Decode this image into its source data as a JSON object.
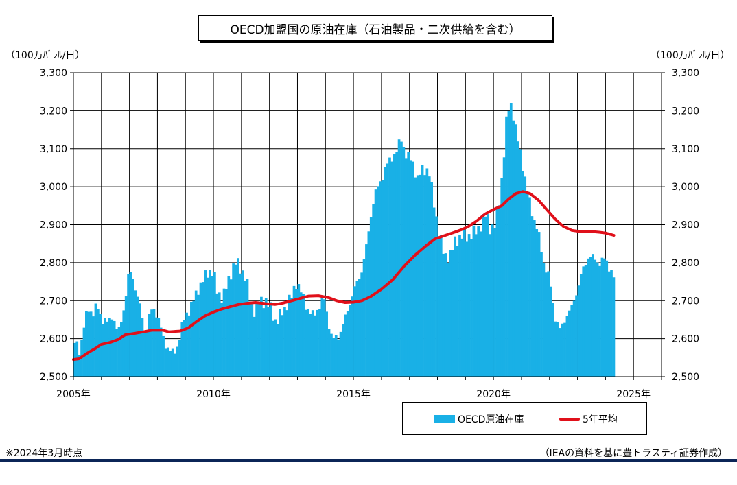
{
  "chart_data": {
    "type": "bar",
    "title": "OECD加盟国の原油在庫（石油製品・二次供給を含む）",
    "unit_left": "（100万ﾊﾞﾚﾙ/日）",
    "unit_right": "（100万ﾊﾞﾚﾙ/日）",
    "ylim": [
      2500,
      3300
    ],
    "yticks": [
      "2,500",
      "2,600",
      "2,700",
      "2,800",
      "2,900",
      "3,000",
      "3,100",
      "3,200",
      "3,300"
    ],
    "ytick_values": [
      2500,
      2600,
      2700,
      2800,
      2900,
      3000,
      3100,
      3200,
      3300
    ],
    "xlim": [
      2005.0,
      2026.0
    ],
    "xticks": [
      "2005年",
      "2010年",
      "2015年",
      "2020年",
      "2025年"
    ],
    "xtick_values": [
      2005,
      2010,
      2015,
      2020,
      2025
    ],
    "grid": true,
    "legend_position": "bottom-right",
    "series": [
      {
        "name": "OECD原油在庫",
        "kind": "bar",
        "color": "#19b0e6",
        "anchors": [
          [
            2005.0,
            2590
          ],
          [
            2005.2,
            2570
          ],
          [
            2005.35,
            2640
          ],
          [
            2005.5,
            2680
          ],
          [
            2005.65,
            2665
          ],
          [
            2005.8,
            2685
          ],
          [
            2006.0,
            2650
          ],
          [
            2006.2,
            2640
          ],
          [
            2006.35,
            2665
          ],
          [
            2006.55,
            2610
          ],
          [
            2006.7,
            2660
          ],
          [
            2006.85,
            2720
          ],
          [
            2006.95,
            2780
          ],
          [
            2007.1,
            2760
          ],
          [
            2007.2,
            2720
          ],
          [
            2007.35,
            2680
          ],
          [
            2007.55,
            2610
          ],
          [
            2007.7,
            2670
          ],
          [
            2007.85,
            2680
          ],
          [
            2008.0,
            2650
          ],
          [
            2008.2,
            2590
          ],
          [
            2008.35,
            2575
          ],
          [
            2008.5,
            2560
          ],
          [
            2008.65,
            2575
          ],
          [
            2008.8,
            2620
          ],
          [
            2008.95,
            2660
          ],
          [
            2009.2,
            2690
          ],
          [
            2009.4,
            2730
          ],
          [
            2009.6,
            2755
          ],
          [
            2009.8,
            2780
          ],
          [
            2009.95,
            2775
          ],
          [
            2010.1,
            2720
          ],
          [
            2010.3,
            2710
          ],
          [
            2010.45,
            2740
          ],
          [
            2010.6,
            2780
          ],
          [
            2010.75,
            2800
          ],
          [
            2010.9,
            2790
          ],
          [
            2011.1,
            2760
          ],
          [
            2011.3,
            2690
          ],
          [
            2011.45,
            2670
          ],
          [
            2011.6,
            2700
          ],
          [
            2011.8,
            2700
          ],
          [
            2012.0,
            2680
          ],
          [
            2012.2,
            2640
          ],
          [
            2012.4,
            2670
          ],
          [
            2012.55,
            2685
          ],
          [
            2012.75,
            2710
          ],
          [
            2012.9,
            2750
          ],
          [
            2013.1,
            2720
          ],
          [
            2013.3,
            2680
          ],
          [
            2013.5,
            2660
          ],
          [
            2013.7,
            2680
          ],
          [
            2013.9,
            2710
          ],
          [
            2014.05,
            2650
          ],
          [
            2014.2,
            2595
          ],
          [
            2014.45,
            2610
          ],
          [
            2014.65,
            2650
          ],
          [
            2014.85,
            2700
          ],
          [
            2015.05,
            2740
          ],
          [
            2015.25,
            2780
          ],
          [
            2015.4,
            2830
          ],
          [
            2015.55,
            2910
          ],
          [
            2015.7,
            2975
          ],
          [
            2015.9,
            3010
          ],
          [
            2016.1,
            3050
          ],
          [
            2016.35,
            3080
          ],
          [
            2016.55,
            3100
          ],
          [
            2016.65,
            3130
          ],
          [
            2016.85,
            3080
          ],
          [
            2017.05,
            3070
          ],
          [
            2017.25,
            3020
          ],
          [
            2017.45,
            3050
          ],
          [
            2017.65,
            3040
          ],
          [
            2017.85,
            2950
          ],
          [
            2018.0,
            2880
          ],
          [
            2018.2,
            2820
          ],
          [
            2018.4,
            2815
          ],
          [
            2018.6,
            2860
          ],
          [
            2018.85,
            2870
          ],
          [
            2019.05,
            2870
          ],
          [
            2019.3,
            2880
          ],
          [
            2019.5,
            2900
          ],
          [
            2019.7,
            2930
          ],
          [
            2019.85,
            2890
          ],
          [
            2020.0,
            2895
          ],
          [
            2020.2,
            2980
          ],
          [
            2020.35,
            3100
          ],
          [
            2020.45,
            3200
          ],
          [
            2020.6,
            3220
          ],
          [
            2020.75,
            3150
          ],
          [
            2020.95,
            3080
          ],
          [
            2021.15,
            2990
          ],
          [
            2021.35,
            2930
          ],
          [
            2021.55,
            2880
          ],
          [
            2021.75,
            2800
          ],
          [
            2021.95,
            2760
          ],
          [
            2022.15,
            2660
          ],
          [
            2022.35,
            2620
          ],
          [
            2022.55,
            2660
          ],
          [
            2022.75,
            2680
          ],
          [
            2022.95,
            2730
          ],
          [
            2023.15,
            2780
          ],
          [
            2023.35,
            2820
          ],
          [
            2023.55,
            2810
          ],
          [
            2023.75,
            2800
          ],
          [
            2023.95,
            2810
          ],
          [
            2024.15,
            2780
          ],
          [
            2024.25,
            2760
          ]
        ]
      },
      {
        "name": "5年平均",
        "kind": "line",
        "color": "#e0101a",
        "points": [
          [
            2005.0,
            2545
          ],
          [
            2005.2,
            2547
          ],
          [
            2005.5,
            2562
          ],
          [
            2005.8,
            2575
          ],
          [
            2006.0,
            2585
          ],
          [
            2006.3,
            2590
          ],
          [
            2006.6,
            2598
          ],
          [
            2006.85,
            2610
          ],
          [
            2007.2,
            2614
          ],
          [
            2007.5,
            2618
          ],
          [
            2007.8,
            2622
          ],
          [
            2008.2,
            2622
          ],
          [
            2008.4,
            2618
          ],
          [
            2008.8,
            2620
          ],
          [
            2009.1,
            2628
          ],
          [
            2009.4,
            2645
          ],
          [
            2009.7,
            2660
          ],
          [
            2010.0,
            2670
          ],
          [
            2010.3,
            2678
          ],
          [
            2010.6,
            2684
          ],
          [
            2010.9,
            2690
          ],
          [
            2011.2,
            2693
          ],
          [
            2011.5,
            2695
          ],
          [
            2011.9,
            2692
          ],
          [
            2012.2,
            2690
          ],
          [
            2012.5,
            2694
          ],
          [
            2012.8,
            2700
          ],
          [
            2013.1,
            2706
          ],
          [
            2013.4,
            2712
          ],
          [
            2013.75,
            2713
          ],
          [
            2014.1,
            2708
          ],
          [
            2014.4,
            2700
          ],
          [
            2014.7,
            2695
          ],
          [
            2015.0,
            2696
          ],
          [
            2015.3,
            2700
          ],
          [
            2015.6,
            2710
          ],
          [
            2016.0,
            2730
          ],
          [
            2016.4,
            2755
          ],
          [
            2016.8,
            2790
          ],
          [
            2017.2,
            2820
          ],
          [
            2017.6,
            2845
          ],
          [
            2017.9,
            2862
          ],
          [
            2018.2,
            2870
          ],
          [
            2018.6,
            2880
          ],
          [
            2018.9,
            2888
          ],
          [
            2019.1,
            2895
          ],
          [
            2019.4,
            2910
          ],
          [
            2019.7,
            2928
          ],
          [
            2020.0,
            2940
          ],
          [
            2020.3,
            2950
          ],
          [
            2020.55,
            2968
          ],
          [
            2020.8,
            2982
          ],
          [
            2021.05,
            2987
          ],
          [
            2021.3,
            2982
          ],
          [
            2021.6,
            2965
          ],
          [
            2021.9,
            2940
          ],
          [
            2022.2,
            2915
          ],
          [
            2022.5,
            2895
          ],
          [
            2022.8,
            2885
          ],
          [
            2023.1,
            2882
          ],
          [
            2023.5,
            2882
          ],
          [
            2023.8,
            2880
          ],
          [
            2024.0,
            2878
          ],
          [
            2024.3,
            2872
          ]
        ]
      }
    ]
  },
  "legend": {
    "bar_label": "OECD原油在庫",
    "line_label": "5年平均"
  },
  "notes": {
    "left": "※2024年3月時点",
    "right": "（IEAの資料を基に豊トラスティ証券作成）"
  },
  "colors": {
    "bar": "#19b0e6",
    "line": "#e0101a",
    "rule": "#0b2557"
  }
}
